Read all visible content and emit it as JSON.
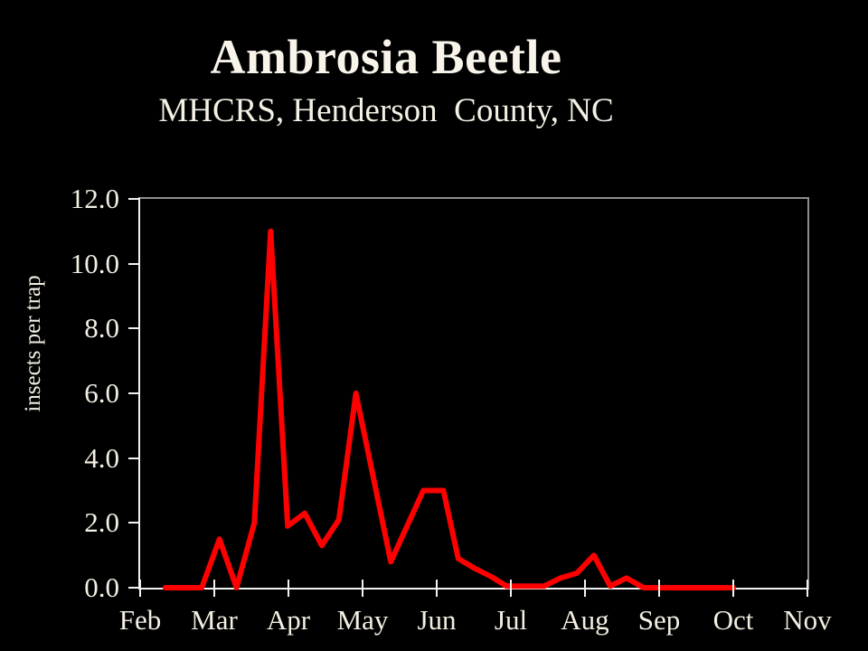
{
  "slide": {
    "title": "Ambrosia Beetle",
    "subtitle": "MHCRS, Henderson  County, NC"
  },
  "colors": {
    "background": "#000000",
    "text": "#f3efe3",
    "series_red": "#fe0000",
    "plot_frame_gray": "#8e8e8e",
    "axis_white": "#f2f2f2"
  },
  "chart_data": {
    "type": "line",
    "title": "Ambrosia Beetle",
    "subtitle": "MHCRS, Henderson  County, NC",
    "xlabel": "",
    "ylabel": "insects per trap",
    "ylim": [
      0,
      12
    ],
    "y_ticks": [
      0,
      2,
      4,
      6,
      8,
      10,
      12
    ],
    "y_tick_labels": [
      "0.0",
      "2.0",
      "4.0",
      "6.0",
      "8.0",
      "10.0",
      "12.0"
    ],
    "x_tick_labels": [
      "Feb",
      "Mar",
      "Apr",
      "May",
      "Jun",
      "Jul",
      "Aug",
      "Sep",
      "Oct",
      "Nov"
    ],
    "x_unit": "months, Feb tick = 0, approx weekly samples",
    "grid": false,
    "legend": "none",
    "series": [
      {
        "name": "insects per trap",
        "color": "#fe0000",
        "points": [
          {
            "x": 0.34,
            "y": 0.0
          },
          {
            "x": 0.83,
            "y": 0.0
          },
          {
            "x": 1.07,
            "y": 1.5
          },
          {
            "x": 1.3,
            "y": 0.0
          },
          {
            "x": 1.54,
            "y": 2.0
          },
          {
            "x": 1.76,
            "y": 11.0
          },
          {
            "x": 1.99,
            "y": 1.9
          },
          {
            "x": 2.22,
            "y": 2.3
          },
          {
            "x": 2.45,
            "y": 1.3
          },
          {
            "x": 2.68,
            "y": 2.1
          },
          {
            "x": 2.91,
            "y": 6.0
          },
          {
            "x": 3.38,
            "y": 0.8
          },
          {
            "x": 3.82,
            "y": 3.0
          },
          {
            "x": 4.09,
            "y": 3.0
          },
          {
            "x": 4.29,
            "y": 0.9
          },
          {
            "x": 4.51,
            "y": 0.6
          },
          {
            "x": 4.73,
            "y": 0.35
          },
          {
            "x": 4.94,
            "y": 0.05
          },
          {
            "x": 5.45,
            "y": 0.05
          },
          {
            "x": 5.67,
            "y": 0.3
          },
          {
            "x": 5.89,
            "y": 0.45
          },
          {
            "x": 6.12,
            "y": 1.0
          },
          {
            "x": 6.34,
            "y": 0.05
          },
          {
            "x": 6.56,
            "y": 0.3
          },
          {
            "x": 6.79,
            "y": 0.0
          },
          {
            "x": 8.0,
            "y": 0.0
          }
        ]
      }
    ]
  }
}
